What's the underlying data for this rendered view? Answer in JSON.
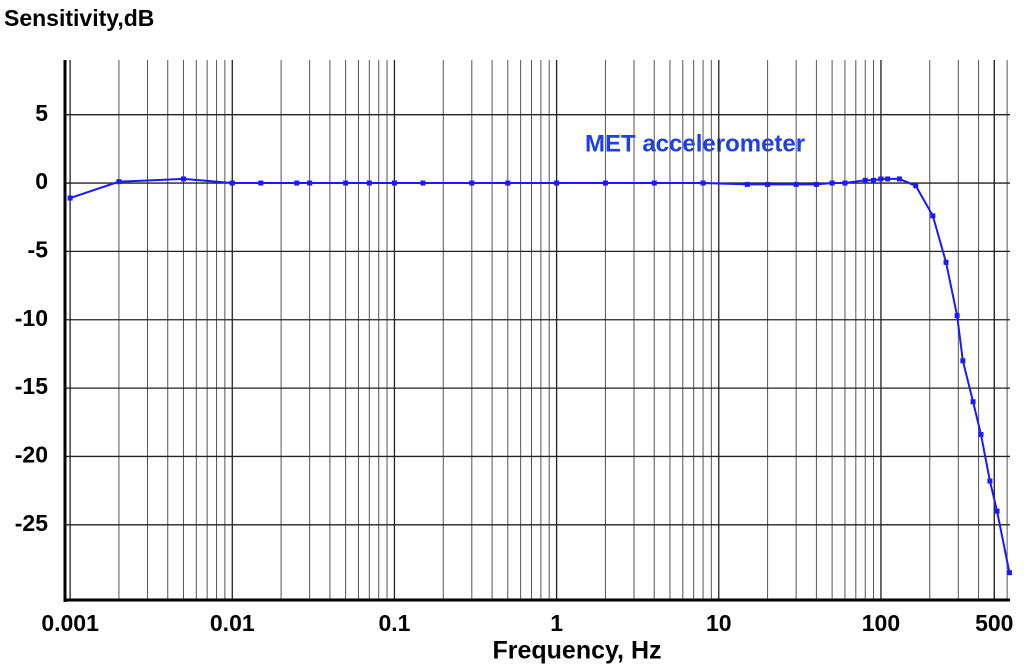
{
  "chart_data": {
    "type": "line",
    "y_axis_label": "Sensitivity,dB",
    "x_axis_label": "Frequency, Hz",
    "x_scale": "log",
    "xlim": [
      0.00093,
      625
    ],
    "ylim": [
      -30.5,
      9
    ],
    "xticks": [
      0.001,
      0.01,
      0.1,
      1,
      10,
      100,
      500
    ],
    "yticks": [
      5,
      0,
      -5,
      -10,
      -15,
      -20,
      -25
    ],
    "grid": true,
    "minor_x_grid": true,
    "series": [
      {
        "name": "MET accelerometer",
        "color": "#1a1aff",
        "x": [
          0.001,
          0.002,
          0.005,
          0.01,
          0.015,
          0.025,
          0.03,
          0.05,
          0.07,
          0.1,
          0.15,
          0.3,
          0.5,
          1,
          2,
          4,
          8,
          15,
          20,
          30,
          40,
          50,
          60,
          80,
          90,
          100,
          110,
          130,
          164,
          209,
          252,
          295,
          320,
          370,
          414,
          470,
          520,
          620
        ],
        "values": [
          -1.1,
          0.1,
          0.3,
          0.0,
          0.0,
          0.0,
          0.0,
          0.0,
          0.0,
          0.0,
          0.0,
          0.0,
          0.0,
          0.0,
          0.0,
          0.0,
          0.0,
          -0.1,
          -0.1,
          -0.1,
          -0.1,
          0.0,
          0.0,
          0.2,
          0.2,
          0.3,
          0.3,
          0.3,
          -0.2,
          -2.4,
          -5.8,
          -9.7,
          -13.0,
          -16.0,
          -18.4,
          -21.8,
          -24.0,
          -28.5
        ]
      }
    ]
  }
}
